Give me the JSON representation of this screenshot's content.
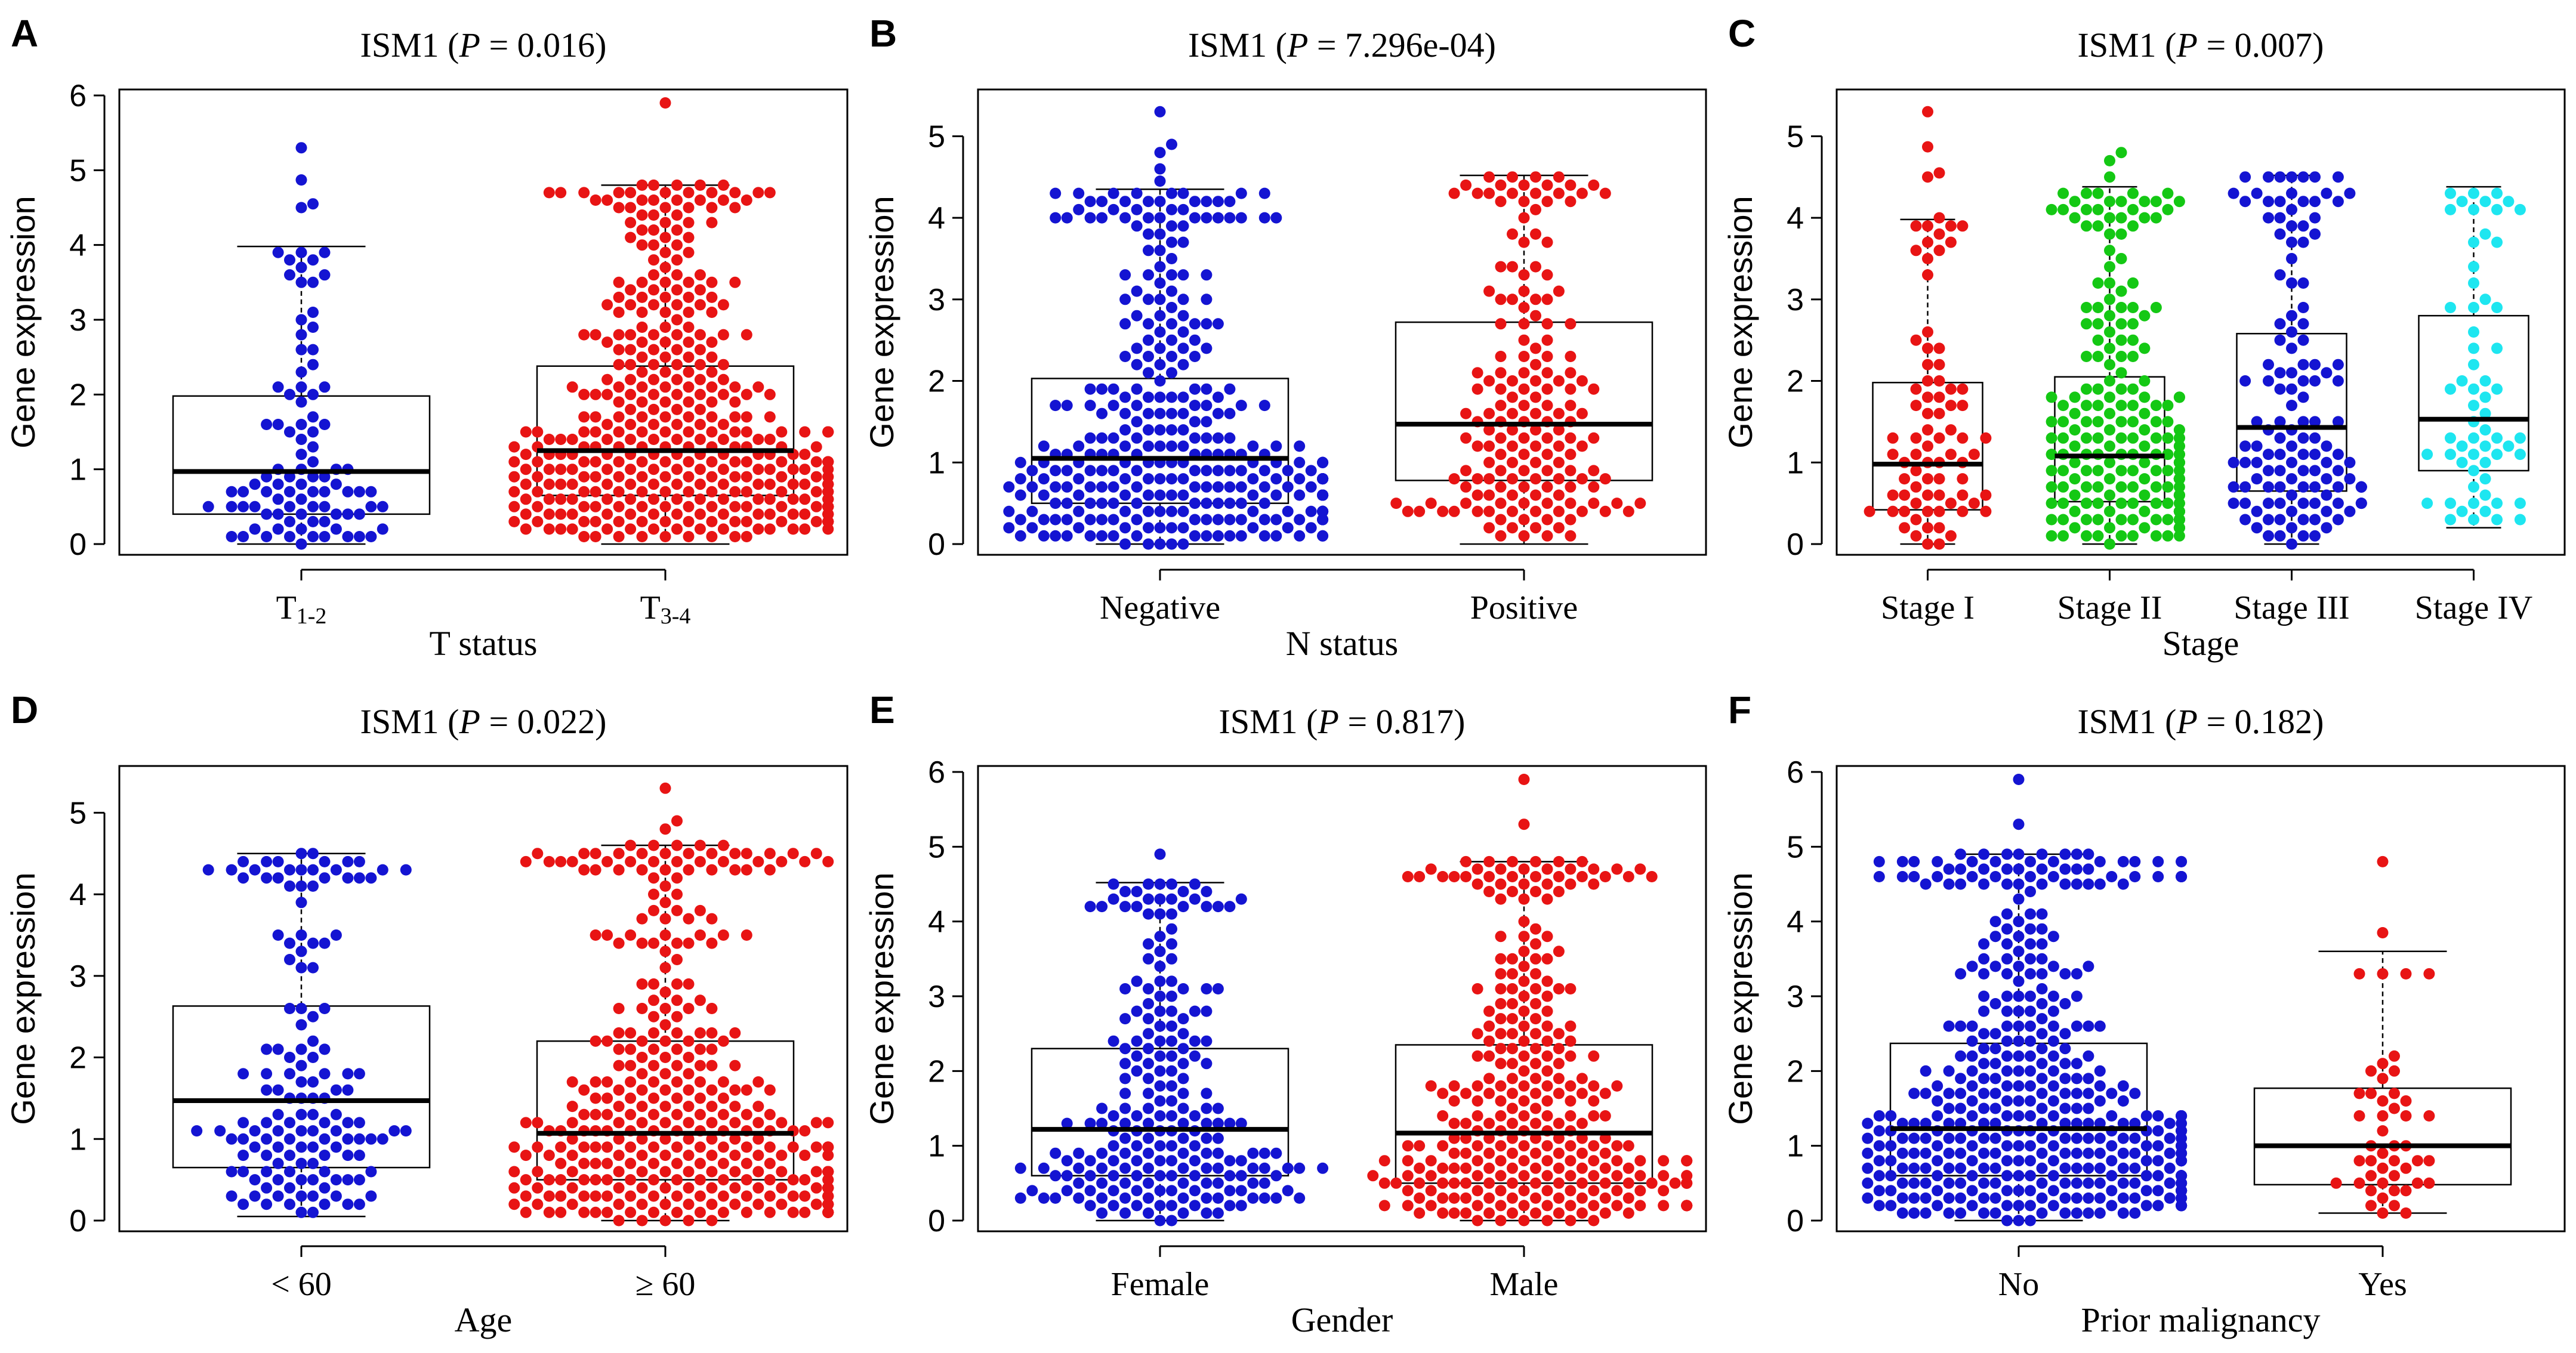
{
  "figure": {
    "ylabel": "Gene expression",
    "colors": {
      "blue": "#1414d2",
      "red": "#e81414",
      "green": "#14c814",
      "cyan": "#1ee6f0"
    }
  },
  "chart_data": [
    {
      "panel": "A",
      "type": "box-swarm",
      "title_gene": "ISM1",
      "title_p": "P",
      "title_eq": "= 0.016",
      "xlabel": "T status",
      "ylabel": "Gene expression",
      "ylim": [
        0,
        6
      ],
      "yticks": [
        0,
        1,
        2,
        3,
        4,
        5,
        6
      ],
      "groups": [
        {
          "label": "T",
          "label_sub": "1-2",
          "n": 95,
          "color": "blue",
          "q1": 0.4,
          "median": 0.97,
          "q3": 1.98,
          "wlow": 0.0,
          "whigh": 3.98,
          "max": 5.3,
          "outliers": [
            4.5,
            4.55,
            4.87,
            5.3
          ]
        },
        {
          "label": "T",
          "label_sub": "3-4",
          "n": 420,
          "color": "red",
          "q1": 0.65,
          "median": 1.25,
          "q3": 2.38,
          "wlow": 0.0,
          "whigh": 4.8,
          "max": 5.9,
          "outliers": [
            5.9
          ]
        }
      ]
    },
    {
      "panel": "B",
      "type": "box-swarm",
      "title_gene": "ISM1",
      "title_p": "P",
      "title_eq": "= 7.296e-04",
      "xlabel": "N status",
      "ylabel": "Gene expression",
      "ylim": [
        0,
        5.5
      ],
      "yticks": [
        0,
        1,
        2,
        3,
        4,
        5
      ],
      "groups": [
        {
          "label": "Negative",
          "label_sub": "",
          "n": 340,
          "color": "blue",
          "q1": 0.5,
          "median": 1.05,
          "q3": 2.03,
          "wlow": 0.0,
          "whigh": 4.35,
          "max": 5.3,
          "outliers": [
            4.45,
            4.6,
            4.8,
            4.9,
            5.3
          ]
        },
        {
          "label": "Positive",
          "label_sub": "",
          "n": 170,
          "color": "red",
          "q1": 0.78,
          "median": 1.47,
          "q3": 2.72,
          "wlow": 0.0,
          "whigh": 4.52,
          "max": 4.52,
          "outliers": []
        }
      ]
    },
    {
      "panel": "C",
      "type": "box-swarm",
      "title_gene": "ISM1",
      "title_p": "P",
      "title_eq": "= 0.007",
      "xlabel": "Stage",
      "ylabel": "Gene expression",
      "ylim": [
        0,
        5.5
      ],
      "yticks": [
        0,
        1,
        2,
        3,
        4,
        5
      ],
      "groups": [
        {
          "label": "Stage I",
          "label_sub": "",
          "n": 80,
          "color": "red",
          "q1": 0.42,
          "median": 0.98,
          "q3": 1.98,
          "wlow": 0.0,
          "whigh": 3.98,
          "max": 5.3,
          "outliers": [
            4.5,
            4.55,
            4.87,
            5.3
          ]
        },
        {
          "label": "Stage II",
          "label_sub": "",
          "n": 250,
          "color": "green",
          "q1": 0.52,
          "median": 1.08,
          "q3": 2.05,
          "wlow": 0.0,
          "whigh": 4.38,
          "max": 4.8,
          "outliers": [
            4.5,
            4.7,
            4.8
          ]
        },
        {
          "label": "Stage III",
          "label_sub": "",
          "n": 130,
          "color": "blue",
          "q1": 0.65,
          "median": 1.43,
          "q3": 2.58,
          "wlow": 0.0,
          "whigh": 4.52,
          "max": 4.52,
          "outliers": []
        },
        {
          "label": "Stage IV",
          "label_sub": "",
          "n": 62,
          "color": "cyan",
          "q1": 0.9,
          "median": 1.53,
          "q3": 2.8,
          "wlow": 0.2,
          "whigh": 4.38,
          "max": 4.38,
          "outliers": []
        }
      ]
    },
    {
      "panel": "D",
      "type": "box-swarm",
      "title_gene": "ISM1",
      "title_p": "P",
      "title_eq": "= 0.022",
      "xlabel": "Age",
      "ylabel": "Gene expression",
      "ylim": [
        0,
        5.5
      ],
      "yticks": [
        0,
        1,
        2,
        3,
        4,
        5
      ],
      "groups": [
        {
          "label": "< 60",
          "label_sub": "",
          "n": 140,
          "color": "blue",
          "q1": 0.65,
          "median": 1.47,
          "q3": 2.63,
          "wlow": 0.05,
          "whigh": 4.5,
          "max": 4.5,
          "outliers": []
        },
        {
          "label": "≥ 60",
          "label_sub": "",
          "n": 370,
          "color": "red",
          "q1": 0.5,
          "median": 1.07,
          "q3": 2.2,
          "wlow": 0.0,
          "whigh": 4.6,
          "max": 5.3,
          "outliers": [
            4.8,
            4.9,
            5.3
          ]
        }
      ]
    },
    {
      "panel": "E",
      "type": "box-swarm",
      "title_gene": "ISM1",
      "title_p": "P",
      "title_eq": "= 0.817",
      "xlabel": "Gender",
      "ylabel": "Gene expression",
      "ylim": [
        0,
        6
      ],
      "yticks": [
        0,
        1,
        2,
        3,
        4,
        5,
        6
      ],
      "groups": [
        {
          "label": "Female",
          "label_sub": "",
          "n": 220,
          "color": "blue",
          "q1": 0.6,
          "median": 1.22,
          "q3": 2.3,
          "wlow": 0.0,
          "whigh": 4.52,
          "max": 4.9,
          "outliers": [
            4.9
          ]
        },
        {
          "label": "Male",
          "label_sub": "",
          "n": 300,
          "color": "red",
          "q1": 0.5,
          "median": 1.17,
          "q3": 2.35,
          "wlow": 0.0,
          "whigh": 4.8,
          "max": 5.9,
          "outliers": [
            5.3,
            5.9
          ]
        }
      ]
    },
    {
      "panel": "F",
      "type": "box-swarm",
      "title_gene": "ISM1",
      "title_p": "P",
      "title_eq": "= 0.182",
      "xlabel": "Prior malignancy",
      "ylabel": "Gene expression",
      "ylim": [
        0,
        6
      ],
      "yticks": [
        0,
        1,
        2,
        3,
        4,
        5,
        6
      ],
      "groups": [
        {
          "label": "No",
          "label_sub": "",
          "n": 470,
          "color": "blue",
          "q1": 0.6,
          "median": 1.23,
          "q3": 2.37,
          "wlow": 0.0,
          "whigh": 4.9,
          "max": 5.9,
          "outliers": [
            5.3,
            5.9
          ]
        },
        {
          "label": "Yes",
          "label_sub": "",
          "n": 48,
          "color": "red",
          "q1": 0.48,
          "median": 1.0,
          "q3": 1.77,
          "wlow": 0.1,
          "whigh": 3.6,
          "max": 4.8,
          "outliers": [
            3.85,
            4.8
          ]
        }
      ]
    }
  ]
}
